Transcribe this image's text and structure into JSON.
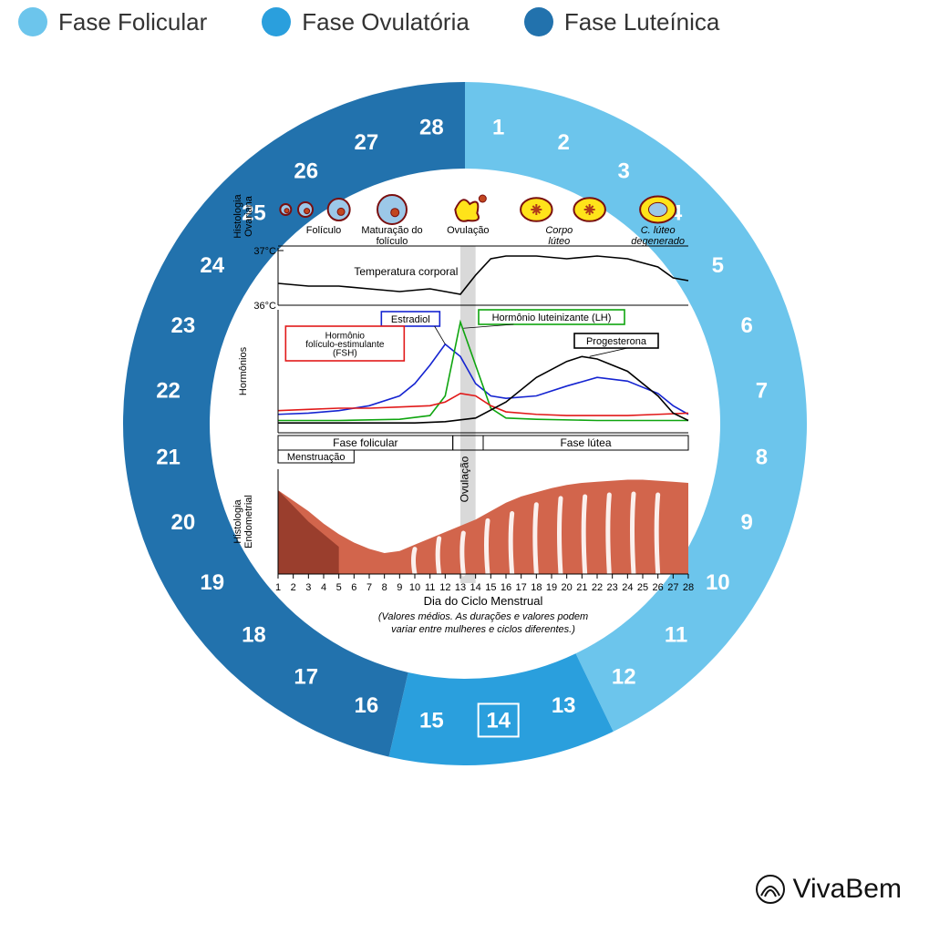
{
  "legend": [
    {
      "label": "Fase Folicular",
      "color": "#6cc5ec"
    },
    {
      "label": "Fase Ovulatória",
      "color": "#2a9fdd"
    },
    {
      "label": "Fase Luteínica",
      "color": "#2272ad"
    }
  ],
  "brand": {
    "name": "VivaBem"
  },
  "wheel": {
    "outer_radius": 375,
    "inner_radius": 280,
    "days": 28,
    "highlighted_day": 14,
    "day_font_size": 24,
    "phases": [
      {
        "name": "folicular",
        "from": 1,
        "to": 12,
        "color": "#6cc5ec"
      },
      {
        "name": "ovulatoria",
        "from": 13,
        "to": 15,
        "color": "#2a9fdd"
      },
      {
        "name": "luteinica",
        "from": 16,
        "to": 28,
        "color": "#2272ad"
      }
    ]
  },
  "diagram": {
    "axis_label": "Dia do Ciclo Menstrual",
    "footnote": "(Valores médios. As durações e valores podem variar entre mulheres e ciclos diferentes.)",
    "panels": {
      "histology_ovarian": {
        "label_lines": [
          "Histologia",
          "Ovariana"
        ],
        "stages": [
          {
            "label": "Folículo",
            "draw": "follicle_small"
          },
          {
            "label": "Maturação do folículo",
            "draw": "follicle_maturing"
          },
          {
            "label": "Ovulação",
            "draw": "ovulation"
          },
          {
            "label": "Corpo lúteo",
            "draw": "corpus_luteum"
          },
          {
            "label": "C. lúteo degenerado",
            "draw": "corpus_luteum_degen"
          }
        ]
      },
      "temperature": {
        "label": "Temperatura corporal",
        "ticks": [
          "37°C",
          "36°C"
        ],
        "points": [
          [
            1,
            36.4
          ],
          [
            3,
            36.35
          ],
          [
            5,
            36.35
          ],
          [
            7,
            36.3
          ],
          [
            9,
            36.25
          ],
          [
            11,
            36.3
          ],
          [
            12,
            36.25
          ],
          [
            13,
            36.2
          ],
          [
            14,
            36.55
          ],
          [
            15,
            36.85
          ],
          [
            16,
            36.9
          ],
          [
            18,
            36.9
          ],
          [
            20,
            36.85
          ],
          [
            22,
            36.9
          ],
          [
            24,
            36.85
          ],
          [
            26,
            36.7
          ],
          [
            27,
            36.5
          ],
          [
            28,
            36.45
          ]
        ],
        "ylim": [
          36,
          37
        ],
        "line_color": "#000000"
      },
      "hormones": {
        "label": "Hormônios",
        "ylim": [
          0,
          100
        ],
        "series": {
          "fsh": {
            "label": "Hormônio folículo-estimulante (FSH)",
            "box_color": "#e11919",
            "line_color": "#e11919",
            "points": [
              [
                1,
                18
              ],
              [
                3,
                19
              ],
              [
                5,
                20
              ],
              [
                7,
                20
              ],
              [
                9,
                21
              ],
              [
                11,
                22
              ],
              [
                12,
                25
              ],
              [
                13,
                32
              ],
              [
                14,
                30
              ],
              [
                15,
                22
              ],
              [
                16,
                17
              ],
              [
                18,
                15
              ],
              [
                20,
                14
              ],
              [
                22,
                14
              ],
              [
                24,
                14
              ],
              [
                26,
                15
              ],
              [
                28,
                16
              ]
            ]
          },
          "estradiol": {
            "label": "Estradiol",
            "box_color": "#1524d1",
            "line_color": "#1524d1",
            "points": [
              [
                1,
                15
              ],
              [
                3,
                16
              ],
              [
                5,
                18
              ],
              [
                7,
                22
              ],
              [
                9,
                30
              ],
              [
                10,
                40
              ],
              [
                11,
                55
              ],
              [
                12,
                72
              ],
              [
                13,
                62
              ],
              [
                14,
                40
              ],
              [
                15,
                30
              ],
              [
                16,
                28
              ],
              [
                18,
                30
              ],
              [
                20,
                38
              ],
              [
                22,
                45
              ],
              [
                24,
                42
              ],
              [
                26,
                32
              ],
              [
                27,
                22
              ],
              [
                28,
                15
              ]
            ]
          },
          "lh": {
            "label": "Hormônio luteinizante (LH)",
            "box_color": "#0fa50f",
            "line_color": "#0fa50f",
            "points": [
              [
                1,
                10
              ],
              [
                5,
                10
              ],
              [
                9,
                11
              ],
              [
                11,
                14
              ],
              [
                12,
                30
              ],
              [
                13,
                90
              ],
              [
                14,
                55
              ],
              [
                15,
                20
              ],
              [
                16,
                12
              ],
              [
                18,
                11
              ],
              [
                22,
                10
              ],
              [
                28,
                10
              ]
            ]
          },
          "progesterone": {
            "label": "Progesterona",
            "box_color": "#000000",
            "line_color": "#000000",
            "points": [
              [
                1,
                8
              ],
              [
                6,
                8
              ],
              [
                10,
                8
              ],
              [
                12,
                9
              ],
              [
                14,
                12
              ],
              [
                16,
                25
              ],
              [
                18,
                45
              ],
              [
                20,
                58
              ],
              [
                21,
                62
              ],
              [
                22,
                60
              ],
              [
                24,
                50
              ],
              [
                26,
                30
              ],
              [
                27,
                16
              ],
              [
                28,
                10
              ]
            ]
          }
        }
      },
      "phase_bar": {
        "segments": [
          {
            "label": "Fase folicular",
            "from": 1,
            "to": 12.5
          },
          {
            "label": "Ovulação",
            "from": 12.5,
            "to": 14.5,
            "vertical": true
          },
          {
            "label": "Fase lútea",
            "from": 14.5,
            "to": 28
          }
        ],
        "menstruation": {
          "label": "Menstruação",
          "from": 1,
          "to": 6
        }
      },
      "endometrium": {
        "label_lines": [
          "Histologia",
          "Endometrial"
        ],
        "fill_color": "#d2654c",
        "dark_color": "#6b1f14",
        "base_profile": [
          [
            1,
            80
          ],
          [
            2,
            70
          ],
          [
            3,
            60
          ],
          [
            4,
            48
          ],
          [
            5,
            38
          ],
          [
            6,
            30
          ],
          [
            7,
            24
          ],
          [
            8,
            20
          ],
          [
            9,
            22
          ],
          [
            10,
            28
          ],
          [
            11,
            34
          ],
          [
            12,
            40
          ],
          [
            13,
            46
          ],
          [
            14,
            52
          ],
          [
            15,
            60
          ],
          [
            16,
            68
          ],
          [
            17,
            74
          ],
          [
            18,
            78
          ],
          [
            19,
            82
          ],
          [
            20,
            85
          ],
          [
            21,
            87
          ],
          [
            22,
            88
          ],
          [
            23,
            89
          ],
          [
            24,
            90
          ],
          [
            25,
            90
          ],
          [
            26,
            89
          ],
          [
            27,
            88
          ],
          [
            28,
            87
          ]
        ],
        "glands_from_day": 10
      },
      "ovulation_band": {
        "from": 13,
        "to": 14,
        "color": "#bfbfbf"
      }
    },
    "x_ticks": [
      1,
      2,
      3,
      4,
      5,
      6,
      7,
      8,
      9,
      10,
      11,
      12,
      13,
      14,
      15,
      16,
      17,
      18,
      19,
      20,
      21,
      22,
      23,
      24,
      25,
      26,
      27,
      28
    ],
    "colors": {
      "background": "#ffffff",
      "text": "#000000",
      "axis": "#000000"
    },
    "fonts": {
      "label_size": 11,
      "tick_size": 11,
      "footnote_size": 11
    }
  }
}
